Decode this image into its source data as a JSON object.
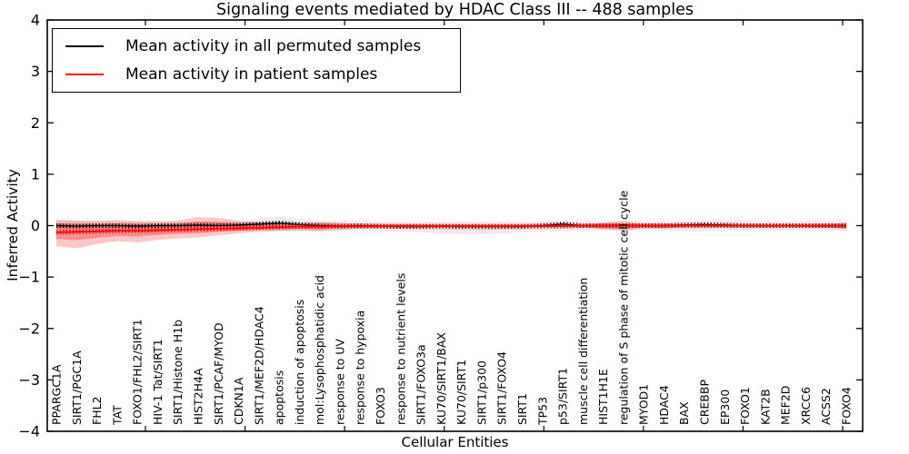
{
  "chart_data": {
    "type": "line",
    "title": "Signaling events mediated by HDAC Class III -- 488 samples",
    "xlabel": "Cellular Entities",
    "ylabel": "Inferred Activity",
    "ylim": [
      -4,
      4
    ],
    "ytick_values": [
      4,
      3,
      2,
      1,
      0,
      -1,
      -2,
      -3,
      -4
    ],
    "ytick_labels": [
      "4",
      "3",
      "2",
      "1",
      "0",
      "−1",
      "−2",
      "−3",
      "−4"
    ],
    "grid": false,
    "legend_position": "upper left",
    "marker": "+",
    "categories": [
      "PPARGC1A",
      "SIRT1/PGC1A",
      "FHL2",
      "TAT",
      "FOXO1/FHL2/SIRT1",
      "HIV-1 Tat/SIRT1",
      "SIRT1/Histone H1b",
      "HIST2H4A",
      "SIRT1/PCAF/MYOD",
      "CDKN1A",
      "SIRT1/MEF2D/HDAC4",
      "apoptosis",
      "induction of apoptosis",
      "mol:Lysophosphatidic acid",
      "response to UV",
      "response to hypoxia",
      "FOXO3",
      "response to nutrient levels",
      "SIRT1/FOXO3a",
      "KU70/SIRT1/BAX",
      "KU70/SIRT1",
      "SIRT1/p300",
      "SIRT1/FOXO4",
      "SIRT1",
      "TP53",
      "p53/SIRT1",
      "muscle cell differentiation",
      "HIST1H1E",
      "regulation of S phase of mitotic cell cycle",
      "MYOD1",
      "HDAC4",
      "BAX",
      "CREBBP",
      "EP300",
      "FOXO1",
      "KAT2B",
      "MEF2D",
      "XRCC6",
      "ACSS2",
      "FOXO4"
    ],
    "series": [
      {
        "name": "Mean activity in all permuted samples",
        "color": "#000000",
        "values": [
          0.0,
          -0.01,
          0.0,
          0.0,
          -0.01,
          0.0,
          0.0,
          0.01,
          0.0,
          0.01,
          0.03,
          0.05,
          0.02,
          0.0,
          -0.01,
          0.0,
          -0.01,
          -0.02,
          -0.02,
          -0.01,
          -0.02,
          -0.02,
          -0.02,
          -0.02,
          0.0,
          0.03,
          0.0,
          0.0,
          0.0,
          0.0,
          0.0,
          0.01,
          0.02,
          0.01,
          0.0,
          0.0,
          0.0,
          0.0,
          0.0,
          0.0
        ]
      },
      {
        "name": "Mean activity in patient samples",
        "color": "#ff0000",
        "values": [
          -0.13,
          -0.12,
          -0.11,
          -0.1,
          -0.1,
          -0.09,
          -0.08,
          -0.07,
          -0.06,
          -0.05,
          -0.04,
          -0.03,
          -0.02,
          -0.02,
          -0.01,
          -0.01,
          -0.01,
          -0.01,
          -0.01,
          -0.01,
          -0.01,
          -0.01,
          -0.01,
          -0.01,
          -0.01,
          -0.01,
          0.0,
          0.0,
          0.0,
          0.0,
          0.0,
          0.0,
          0.0,
          0.0,
          0.0,
          0.0,
          0.0,
          0.0,
          0.0,
          0.0
        ]
      }
    ],
    "bands": [
      {
        "name": "permuted-band-outer",
        "color": "#000000",
        "opacity": 0.07,
        "upper": [
          0.1,
          0.09,
          0.09,
          0.08,
          0.08,
          0.08,
          0.08,
          0.08,
          0.09,
          0.1,
          0.14,
          0.18,
          0.13,
          0.1,
          0.09,
          0.08,
          0.08,
          0.08,
          0.08,
          0.08,
          0.08,
          0.08,
          0.08,
          0.08,
          0.09,
          0.11,
          0.08,
          0.08,
          0.08,
          0.08,
          0.08,
          0.09,
          0.11,
          0.12,
          0.1,
          0.08,
          0.08,
          0.08,
          0.09,
          0.08
        ],
        "lower": [
          -0.1,
          -0.1,
          -0.09,
          -0.09,
          -0.09,
          -0.09,
          -0.09,
          -0.09,
          -0.09,
          -0.1,
          -0.11,
          -0.12,
          -0.11,
          -0.1,
          -0.1,
          -0.1,
          -0.11,
          -0.12,
          -0.13,
          -0.15,
          -0.17,
          -0.17,
          -0.16,
          -0.13,
          -0.12,
          -0.11,
          -0.1,
          -0.1,
          -0.1,
          -0.1,
          -0.1,
          -0.11,
          -0.11,
          -0.1,
          -0.1,
          -0.1,
          -0.1,
          -0.1,
          -0.11,
          -0.1
        ]
      },
      {
        "name": "permuted-band-inner",
        "color": "#000000",
        "opacity": 0.07,
        "upper": [
          0.05,
          0.05,
          0.04,
          0.04,
          0.04,
          0.04,
          0.04,
          0.04,
          0.05,
          0.05,
          0.07,
          0.09,
          0.07,
          0.05,
          0.05,
          0.04,
          0.04,
          0.04,
          0.04,
          0.04,
          0.04,
          0.04,
          0.04,
          0.04,
          0.05,
          0.06,
          0.04,
          0.04,
          0.04,
          0.04,
          0.04,
          0.05,
          0.06,
          0.06,
          0.05,
          0.04,
          0.04,
          0.04,
          0.05,
          0.04
        ],
        "lower": [
          -0.05,
          -0.05,
          -0.05,
          -0.05,
          -0.05,
          -0.05,
          -0.05,
          -0.05,
          -0.05,
          -0.05,
          -0.06,
          -0.06,
          -0.06,
          -0.05,
          -0.05,
          -0.05,
          -0.06,
          -0.06,
          -0.07,
          -0.08,
          -0.09,
          -0.09,
          -0.08,
          -0.07,
          -0.06,
          -0.06,
          -0.05,
          -0.05,
          -0.05,
          -0.05,
          -0.05,
          -0.06,
          -0.06,
          -0.05,
          -0.05,
          -0.05,
          -0.05,
          -0.05,
          -0.06,
          -0.05
        ]
      },
      {
        "name": "patient-band-outer",
        "color": "#ff0000",
        "opacity": 0.22,
        "upper": [
          0.12,
          0.1,
          0.09,
          0.11,
          0.09,
          0.08,
          0.1,
          0.17,
          0.15,
          0.09,
          0.07,
          0.06,
          0.05,
          0.07,
          0.05,
          0.04,
          0.03,
          0.03,
          0.03,
          0.02,
          0.02,
          0.02,
          0.02,
          0.02,
          0.02,
          0.02,
          0.02,
          0.06,
          0.09,
          0.04,
          0.05,
          0.02,
          0.02,
          0.02,
          0.02,
          0.02,
          0.02,
          0.02,
          0.03,
          0.06
        ],
        "lower": [
          -0.4,
          -0.44,
          -0.36,
          -0.3,
          -0.33,
          -0.28,
          -0.25,
          -0.23,
          -0.19,
          -0.15,
          -0.12,
          -0.1,
          -0.09,
          -0.11,
          -0.08,
          -0.06,
          -0.05,
          -0.05,
          -0.04,
          -0.04,
          -0.04,
          -0.04,
          -0.04,
          -0.04,
          -0.03,
          -0.03,
          -0.03,
          -0.07,
          -0.1,
          -0.05,
          -0.06,
          -0.03,
          -0.03,
          -0.03,
          -0.03,
          -0.03,
          -0.03,
          -0.03,
          -0.04,
          -0.07
        ]
      },
      {
        "name": "patient-band-inner",
        "color": "#ff0000",
        "opacity": 0.3,
        "upper": [
          0.04,
          0.03,
          0.03,
          0.04,
          0.03,
          0.02,
          0.04,
          0.08,
          0.07,
          0.04,
          0.03,
          0.02,
          0.02,
          0.03,
          0.02,
          0.01,
          0.01,
          0.01,
          0.01,
          0.01,
          0.01,
          0.01,
          0.01,
          0.01,
          0.01,
          0.01,
          0.01,
          0.03,
          0.04,
          0.02,
          0.02,
          0.01,
          0.01,
          0.01,
          0.01,
          0.01,
          0.01,
          0.01,
          0.01,
          0.03
        ],
        "lower": [
          -0.26,
          -0.28,
          -0.24,
          -0.2,
          -0.21,
          -0.18,
          -0.16,
          -0.15,
          -0.12,
          -0.1,
          -0.08,
          -0.07,
          -0.06,
          -0.07,
          -0.05,
          -0.04,
          -0.03,
          -0.03,
          -0.03,
          -0.03,
          -0.03,
          -0.02,
          -0.02,
          -0.02,
          -0.02,
          -0.02,
          -0.02,
          -0.05,
          -0.06,
          -0.03,
          -0.04,
          -0.02,
          -0.02,
          -0.02,
          -0.02,
          -0.02,
          -0.02,
          -0.02,
          -0.03,
          -0.05
        ]
      }
    ]
  }
}
